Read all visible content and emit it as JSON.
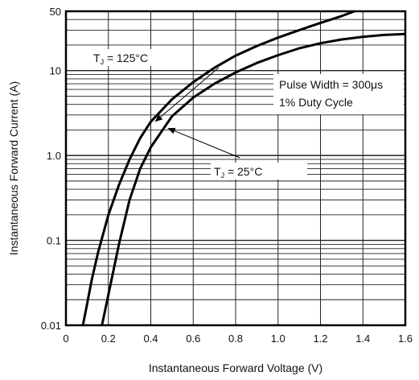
{
  "chart_data": {
    "type": "line",
    "xlabel": "Instantaneous Forward Voltage (V)",
    "ylabel": "Instantaneous Forward Current (A)",
    "xlim": [
      0,
      1.6
    ],
    "ylim": [
      0.01,
      50
    ],
    "yscale": "log",
    "grid": true,
    "x_ticks": [
      "0",
      "0.2",
      "0.4",
      "0.6",
      "0.8",
      "1.0",
      "1.2",
      "1.4",
      "1.6"
    ],
    "y_ticks": [
      {
        "value": 0.01,
        "label": "0.01"
      },
      {
        "value": 0.1,
        "label": "0.1"
      },
      {
        "value": 1,
        "label": "1.0"
      },
      {
        "value": 10,
        "label": "10"
      },
      {
        "value": 50,
        "label": "50"
      }
    ],
    "series": [
      {
        "name": "TJ = 125°C",
        "x": [
          0.08,
          0.1,
          0.12,
          0.15,
          0.2,
          0.25,
          0.3,
          0.35,
          0.4,
          0.5,
          0.6,
          0.7,
          0.8,
          0.9,
          1.0,
          1.1,
          1.2,
          1.3,
          1.36
        ],
        "y": [
          0.01,
          0.018,
          0.033,
          0.07,
          0.2,
          0.45,
          0.9,
          1.6,
          2.5,
          4.6,
          7.3,
          10.8,
          15,
          19.5,
          24.5,
          30,
          36.5,
          44,
          50
        ]
      },
      {
        "name": "TJ = 25°C",
        "x": [
          0.17,
          0.2,
          0.25,
          0.3,
          0.35,
          0.4,
          0.5,
          0.6,
          0.7,
          0.8,
          0.9,
          1.0,
          1.1,
          1.2,
          1.3,
          1.4,
          1.5,
          1.6
        ],
        "y": [
          0.01,
          0.023,
          0.09,
          0.3,
          0.7,
          1.25,
          2.9,
          4.8,
          7.0,
          9.5,
          12.3,
          15.2,
          18.3,
          21.0,
          23.3,
          25.0,
          26.3,
          27.0
        ]
      }
    ],
    "annotations": [
      {
        "name": "t125-label",
        "subscript_label": {
          "pre": "T",
          "sub": "J",
          "post": " = 125°C"
        }
      },
      {
        "name": "t25-label",
        "subscript_label": {
          "pre": "T",
          "sub": "J",
          "post": " = 25°C"
        }
      },
      {
        "name": "pulse-note",
        "lines": [
          "Pulse Width = 300μs",
          "1% Duty Cycle"
        ]
      }
    ]
  }
}
